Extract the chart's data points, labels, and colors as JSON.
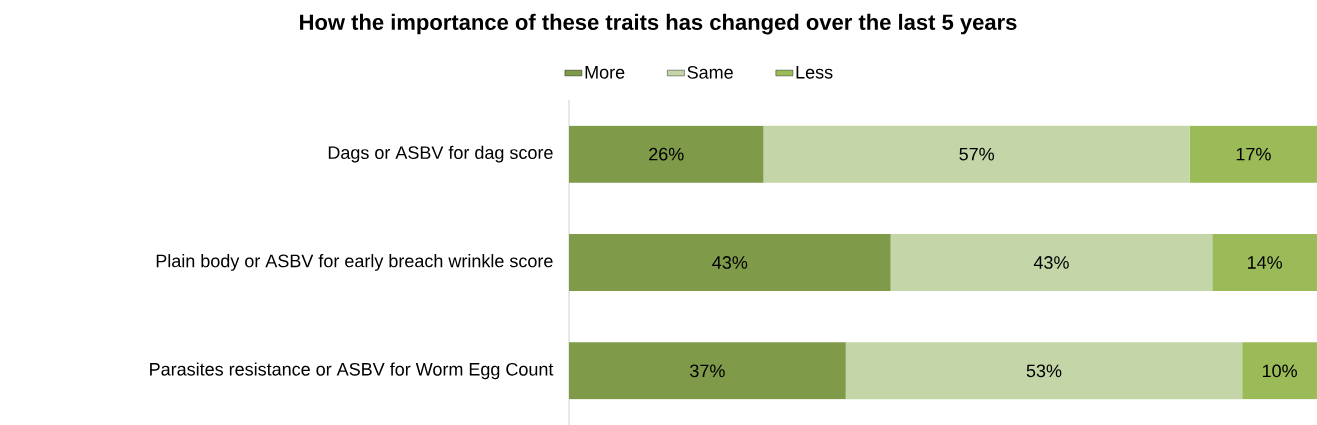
{
  "chart_data": {
    "type": "bar",
    "orientation": "horizontal",
    "stacked": true,
    "title": "How the importance of these traits has changed over the last 5 years",
    "categories": [
      "Dags or ASBV for dag score",
      "Plain body or ASBV for early breach wrinkle score",
      "Parasites resistance or ASBV for Worm Egg Count"
    ],
    "series": [
      {
        "name": "More",
        "color": "#7f9a48",
        "values": [
          26,
          43,
          37
        ],
        "value_labels": [
          "26%",
          "43%",
          "37%"
        ]
      },
      {
        "name": "Same",
        "color": "#c4d6a8",
        "values": [
          57,
          43,
          53
        ],
        "value_labels": [
          "57%",
          "43%",
          "53%"
        ]
      },
      {
        "name": "Less",
        "color": "#9bbb59",
        "values": [
          17,
          14,
          10
        ],
        "value_labels": [
          "17%",
          "14%",
          "10%"
        ]
      }
    ],
    "legend": "top",
    "grid": false
  }
}
